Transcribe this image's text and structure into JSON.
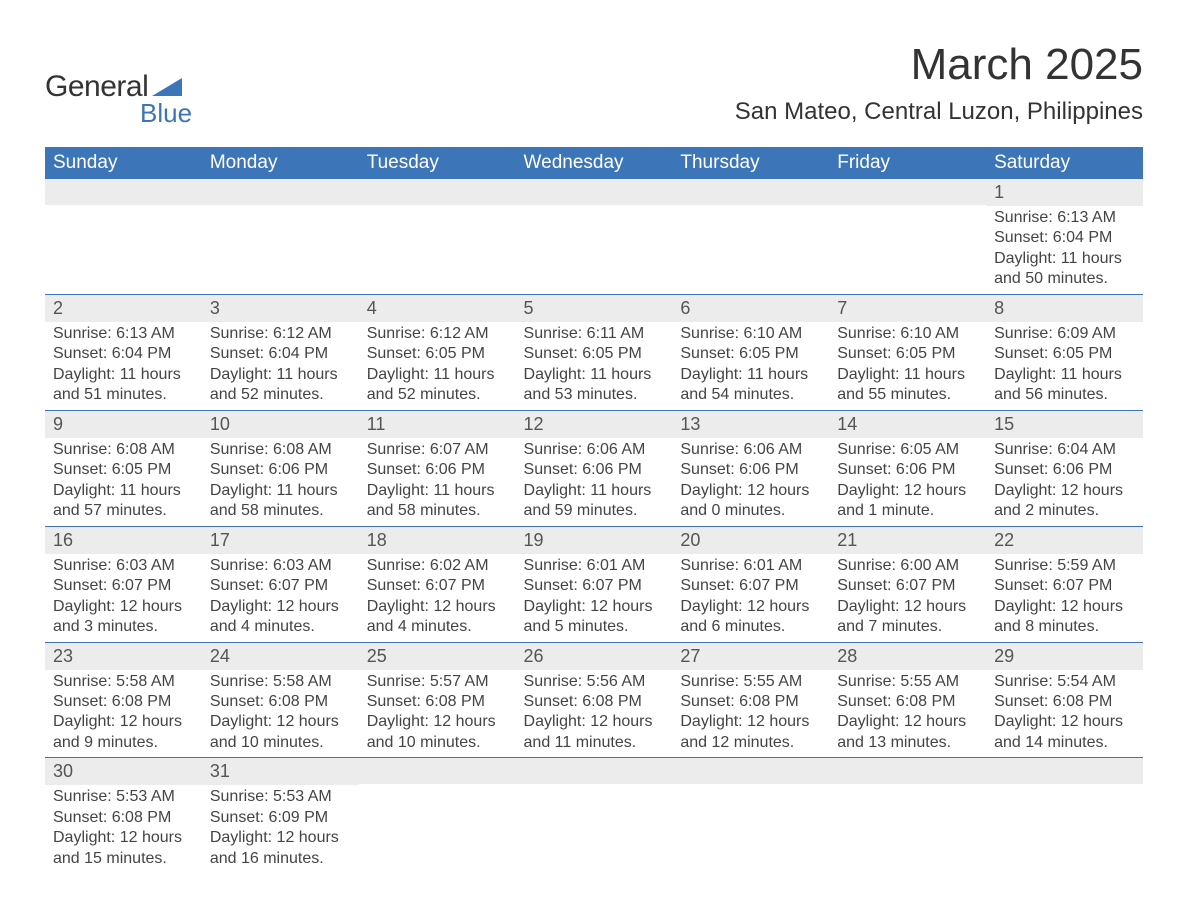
{
  "logo": {
    "text1": "General",
    "text2": "Blue",
    "accent": "#3d76b8"
  },
  "title": "March 2025",
  "location": "San Mateo, Central Luzon, Philippines",
  "header_bg": "#3d76b8",
  "header_fg": "#ffffff",
  "daynum_bg": "#ececec",
  "border_color": "#3d76b8",
  "columns": [
    "Sunday",
    "Monday",
    "Tuesday",
    "Wednesday",
    "Thursday",
    "Friday",
    "Saturday"
  ],
  "weeks": [
    [
      {
        "day": "",
        "sunrise": "",
        "sunset": "",
        "daylight": ""
      },
      {
        "day": "",
        "sunrise": "",
        "sunset": "",
        "daylight": ""
      },
      {
        "day": "",
        "sunrise": "",
        "sunset": "",
        "daylight": ""
      },
      {
        "day": "",
        "sunrise": "",
        "sunset": "",
        "daylight": ""
      },
      {
        "day": "",
        "sunrise": "",
        "sunset": "",
        "daylight": ""
      },
      {
        "day": "",
        "sunrise": "",
        "sunset": "",
        "daylight": ""
      },
      {
        "day": "1",
        "sunrise": "Sunrise: 6:13 AM",
        "sunset": "Sunset: 6:04 PM",
        "daylight": "Daylight: 11 hours and 50 minutes."
      }
    ],
    [
      {
        "day": "2",
        "sunrise": "Sunrise: 6:13 AM",
        "sunset": "Sunset: 6:04 PM",
        "daylight": "Daylight: 11 hours and 51 minutes."
      },
      {
        "day": "3",
        "sunrise": "Sunrise: 6:12 AM",
        "sunset": "Sunset: 6:04 PM",
        "daylight": "Daylight: 11 hours and 52 minutes."
      },
      {
        "day": "4",
        "sunrise": "Sunrise: 6:12 AM",
        "sunset": "Sunset: 6:05 PM",
        "daylight": "Daylight: 11 hours and 52 minutes."
      },
      {
        "day": "5",
        "sunrise": "Sunrise: 6:11 AM",
        "sunset": "Sunset: 6:05 PM",
        "daylight": "Daylight: 11 hours and 53 minutes."
      },
      {
        "day": "6",
        "sunrise": "Sunrise: 6:10 AM",
        "sunset": "Sunset: 6:05 PM",
        "daylight": "Daylight: 11 hours and 54 minutes."
      },
      {
        "day": "7",
        "sunrise": "Sunrise: 6:10 AM",
        "sunset": "Sunset: 6:05 PM",
        "daylight": "Daylight: 11 hours and 55 minutes."
      },
      {
        "day": "8",
        "sunrise": "Sunrise: 6:09 AM",
        "sunset": "Sunset: 6:05 PM",
        "daylight": "Daylight: 11 hours and 56 minutes."
      }
    ],
    [
      {
        "day": "9",
        "sunrise": "Sunrise: 6:08 AM",
        "sunset": "Sunset: 6:05 PM",
        "daylight": "Daylight: 11 hours and 57 minutes."
      },
      {
        "day": "10",
        "sunrise": "Sunrise: 6:08 AM",
        "sunset": "Sunset: 6:06 PM",
        "daylight": "Daylight: 11 hours and 58 minutes."
      },
      {
        "day": "11",
        "sunrise": "Sunrise: 6:07 AM",
        "sunset": "Sunset: 6:06 PM",
        "daylight": "Daylight: 11 hours and 58 minutes."
      },
      {
        "day": "12",
        "sunrise": "Sunrise: 6:06 AM",
        "sunset": "Sunset: 6:06 PM",
        "daylight": "Daylight: 11 hours and 59 minutes."
      },
      {
        "day": "13",
        "sunrise": "Sunrise: 6:06 AM",
        "sunset": "Sunset: 6:06 PM",
        "daylight": "Daylight: 12 hours and 0 minutes."
      },
      {
        "day": "14",
        "sunrise": "Sunrise: 6:05 AM",
        "sunset": "Sunset: 6:06 PM",
        "daylight": "Daylight: 12 hours and 1 minute."
      },
      {
        "day": "15",
        "sunrise": "Sunrise: 6:04 AM",
        "sunset": "Sunset: 6:06 PM",
        "daylight": "Daylight: 12 hours and 2 minutes."
      }
    ],
    [
      {
        "day": "16",
        "sunrise": "Sunrise: 6:03 AM",
        "sunset": "Sunset: 6:07 PM",
        "daylight": "Daylight: 12 hours and 3 minutes."
      },
      {
        "day": "17",
        "sunrise": "Sunrise: 6:03 AM",
        "sunset": "Sunset: 6:07 PM",
        "daylight": "Daylight: 12 hours and 4 minutes."
      },
      {
        "day": "18",
        "sunrise": "Sunrise: 6:02 AM",
        "sunset": "Sunset: 6:07 PM",
        "daylight": "Daylight: 12 hours and 4 minutes."
      },
      {
        "day": "19",
        "sunrise": "Sunrise: 6:01 AM",
        "sunset": "Sunset: 6:07 PM",
        "daylight": "Daylight: 12 hours and 5 minutes."
      },
      {
        "day": "20",
        "sunrise": "Sunrise: 6:01 AM",
        "sunset": "Sunset: 6:07 PM",
        "daylight": "Daylight: 12 hours and 6 minutes."
      },
      {
        "day": "21",
        "sunrise": "Sunrise: 6:00 AM",
        "sunset": "Sunset: 6:07 PM",
        "daylight": "Daylight: 12 hours and 7 minutes."
      },
      {
        "day": "22",
        "sunrise": "Sunrise: 5:59 AM",
        "sunset": "Sunset: 6:07 PM",
        "daylight": "Daylight: 12 hours and 8 minutes."
      }
    ],
    [
      {
        "day": "23",
        "sunrise": "Sunrise: 5:58 AM",
        "sunset": "Sunset: 6:08 PM",
        "daylight": "Daylight: 12 hours and 9 minutes."
      },
      {
        "day": "24",
        "sunrise": "Sunrise: 5:58 AM",
        "sunset": "Sunset: 6:08 PM",
        "daylight": "Daylight: 12 hours and 10 minutes."
      },
      {
        "day": "25",
        "sunrise": "Sunrise: 5:57 AM",
        "sunset": "Sunset: 6:08 PM",
        "daylight": "Daylight: 12 hours and 10 minutes."
      },
      {
        "day": "26",
        "sunrise": "Sunrise: 5:56 AM",
        "sunset": "Sunset: 6:08 PM",
        "daylight": "Daylight: 12 hours and 11 minutes."
      },
      {
        "day": "27",
        "sunrise": "Sunrise: 5:55 AM",
        "sunset": "Sunset: 6:08 PM",
        "daylight": "Daylight: 12 hours and 12 minutes."
      },
      {
        "day": "28",
        "sunrise": "Sunrise: 5:55 AM",
        "sunset": "Sunset: 6:08 PM",
        "daylight": "Daylight: 12 hours and 13 minutes."
      },
      {
        "day": "29",
        "sunrise": "Sunrise: 5:54 AM",
        "sunset": "Sunset: 6:08 PM",
        "daylight": "Daylight: 12 hours and 14 minutes."
      }
    ],
    [
      {
        "day": "30",
        "sunrise": "Sunrise: 5:53 AM",
        "sunset": "Sunset: 6:08 PM",
        "daylight": "Daylight: 12 hours and 15 minutes."
      },
      {
        "day": "31",
        "sunrise": "Sunrise: 5:53 AM",
        "sunset": "Sunset: 6:09 PM",
        "daylight": "Daylight: 12 hours and 16 minutes."
      },
      {
        "day": "",
        "sunrise": "",
        "sunset": "",
        "daylight": ""
      },
      {
        "day": "",
        "sunrise": "",
        "sunset": "",
        "daylight": ""
      },
      {
        "day": "",
        "sunrise": "",
        "sunset": "",
        "daylight": ""
      },
      {
        "day": "",
        "sunrise": "",
        "sunset": "",
        "daylight": ""
      },
      {
        "day": "",
        "sunrise": "",
        "sunset": "",
        "daylight": ""
      }
    ]
  ]
}
